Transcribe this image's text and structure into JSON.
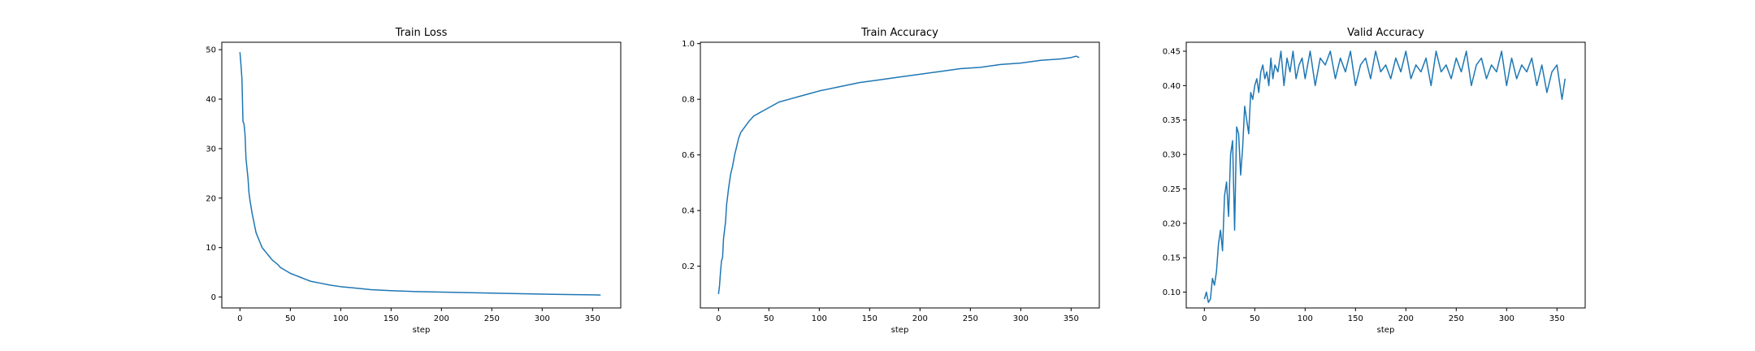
{
  "figure": {
    "line_color": "#1f77b4"
  },
  "chart_data": [
    {
      "type": "line",
      "title": "Train Loss",
      "xlabel": "step",
      "ylabel": "",
      "xlim": [
        -18,
        378
      ],
      "ylim": [
        -2.2,
        51.5
      ],
      "xticks": [
        0,
        50,
        100,
        150,
        200,
        250,
        300,
        350
      ],
      "yticks": [
        0,
        10,
        20,
        30,
        40,
        50
      ],
      "grid": false,
      "series": [
        {
          "x": [
            0,
            1,
            2,
            3,
            4,
            5,
            6,
            7,
            8,
            9,
            10,
            12,
            14,
            16,
            18,
            20,
            22,
            24,
            26,
            28,
            30,
            32,
            35,
            38,
            40,
            45,
            50,
            55,
            60,
            65,
            70,
            80,
            90,
            100,
            110,
            120,
            130,
            140,
            150,
            175,
            200,
            225,
            250,
            275,
            300,
            325,
            350,
            358
          ],
          "y": [
            49.5,
            47,
            44,
            35.5,
            35,
            33,
            28,
            26,
            24,
            21,
            19.5,
            17,
            15,
            13,
            12,
            11,
            10,
            9.5,
            9,
            8.5,
            8,
            7.5,
            7,
            6.5,
            6,
            5.4,
            4.8,
            4.4,
            4.0,
            3.6,
            3.2,
            2.8,
            2.4,
            2.1,
            1.9,
            1.7,
            1.5,
            1.4,
            1.3,
            1.1,
            1.0,
            0.9,
            0.8,
            0.7,
            0.6,
            0.5,
            0.45,
            0.4
          ]
        }
      ]
    },
    {
      "type": "line",
      "title": "Train Accuracy",
      "xlabel": "step",
      "ylabel": "",
      "xlim": [
        -18,
        378
      ],
      "ylim": [
        0.05,
        1.005
      ],
      "xticks": [
        0,
        50,
        100,
        150,
        200,
        250,
        300,
        350
      ],
      "yticks": [
        0.2,
        0.4,
        0.6,
        0.8,
        1.0
      ],
      "grid": false,
      "series": [
        {
          "x": [
            0,
            1,
            2,
            3,
            4,
            5,
            6,
            7,
            8,
            9,
            10,
            12,
            14,
            16,
            18,
            20,
            22,
            24,
            26,
            28,
            30,
            35,
            40,
            45,
            50,
            60,
            70,
            80,
            90,
            100,
            120,
            140,
            160,
            180,
            200,
            220,
            240,
            260,
            280,
            300,
            320,
            340,
            350,
            355,
            358
          ],
          "y": [
            0.1,
            0.13,
            0.18,
            0.22,
            0.23,
            0.3,
            0.33,
            0.36,
            0.42,
            0.45,
            0.48,
            0.53,
            0.56,
            0.6,
            0.63,
            0.66,
            0.68,
            0.69,
            0.7,
            0.71,
            0.72,
            0.74,
            0.75,
            0.76,
            0.77,
            0.79,
            0.8,
            0.81,
            0.82,
            0.83,
            0.845,
            0.86,
            0.87,
            0.88,
            0.89,
            0.9,
            0.91,
            0.915,
            0.925,
            0.93,
            0.94,
            0.945,
            0.95,
            0.955,
            0.95
          ]
        }
      ]
    },
    {
      "type": "line",
      "title": "Valid Accuracy",
      "xlabel": "step",
      "ylabel": "",
      "xlim": [
        -18,
        378
      ],
      "ylim": [
        0.077,
        0.463
      ],
      "xticks": [
        0,
        50,
        100,
        150,
        200,
        250,
        300,
        350
      ],
      "yticks": [
        0.1,
        0.15,
        0.2,
        0.25,
        0.3,
        0.35,
        0.4,
        0.45
      ],
      "grid": false,
      "series": [
        {
          "x": [
            0,
            2,
            4,
            6,
            8,
            10,
            12,
            14,
            16,
            18,
            20,
            22,
            24,
            26,
            28,
            30,
            32,
            34,
            36,
            38,
            40,
            42,
            44,
            46,
            48,
            50,
            52,
            54,
            56,
            58,
            60,
            62,
            64,
            66,
            68,
            70,
            73,
            76,
            79,
            82,
            85,
            88,
            91,
            94,
            97,
            100,
            105,
            110,
            115,
            120,
            125,
            130,
            135,
            140,
            145,
            150,
            155,
            160,
            165,
            170,
            175,
            180,
            185,
            190,
            195,
            200,
            205,
            210,
            215,
            220,
            225,
            230,
            235,
            240,
            245,
            250,
            255,
            260,
            265,
            270,
            275,
            280,
            285,
            290,
            295,
            300,
            305,
            310,
            315,
            320,
            325,
            330,
            335,
            340,
            345,
            350,
            355,
            358
          ],
          "y": [
            0.09,
            0.1,
            0.085,
            0.09,
            0.12,
            0.11,
            0.13,
            0.17,
            0.19,
            0.16,
            0.24,
            0.26,
            0.21,
            0.3,
            0.32,
            0.19,
            0.34,
            0.33,
            0.27,
            0.31,
            0.37,
            0.35,
            0.33,
            0.39,
            0.38,
            0.4,
            0.41,
            0.39,
            0.42,
            0.43,
            0.41,
            0.42,
            0.4,
            0.44,
            0.41,
            0.43,
            0.42,
            0.45,
            0.4,
            0.44,
            0.42,
            0.45,
            0.41,
            0.43,
            0.44,
            0.41,
            0.45,
            0.4,
            0.44,
            0.43,
            0.45,
            0.41,
            0.44,
            0.42,
            0.45,
            0.4,
            0.43,
            0.44,
            0.41,
            0.45,
            0.42,
            0.43,
            0.41,
            0.44,
            0.42,
            0.45,
            0.41,
            0.43,
            0.42,
            0.44,
            0.4,
            0.45,
            0.42,
            0.43,
            0.41,
            0.44,
            0.42,
            0.45,
            0.4,
            0.43,
            0.44,
            0.41,
            0.43,
            0.42,
            0.45,
            0.4,
            0.44,
            0.41,
            0.43,
            0.42,
            0.44,
            0.4,
            0.43,
            0.39,
            0.42,
            0.43,
            0.38,
            0.41
          ]
        }
      ]
    }
  ]
}
